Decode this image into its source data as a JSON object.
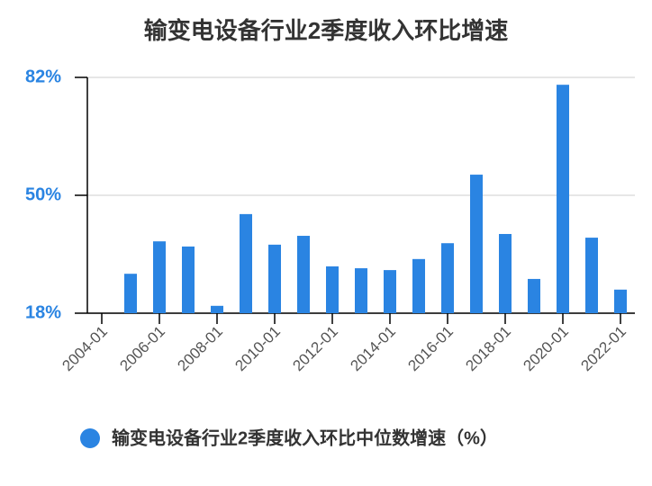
{
  "chart_data": {
    "type": "bar",
    "title": "输变电设备行业2季度收入环比增速",
    "categories": [
      "2004-01",
      null,
      "2006-01",
      null,
      "2008-01",
      null,
      "2010-01",
      null,
      "2012-01",
      null,
      "2014-01",
      null,
      "2016-01",
      null,
      "2018-01",
      null,
      "2020-01",
      null,
      "2022-01"
    ],
    "series": [
      {
        "name": "输变电设备行业2季度收入环比中位数增速（%）",
        "color": "#2a84e2",
        "values": [
          null,
          28.7,
          37.5,
          36.1,
          20.0,
          44.9,
          36.6,
          39.0,
          30.7,
          30.2,
          29.7,
          32.7,
          37.0,
          55.6,
          39.5,
          27.3,
          80.0,
          38.5,
          24.4
        ]
      }
    ],
    "ylim": [
      18,
      82
    ],
    "yticks": [
      {
        "value": 18,
        "label": "18%"
      },
      {
        "value": 50,
        "label": "50%"
      },
      {
        "value": 82,
        "label": "82%"
      }
    ],
    "grid": true,
    "legend": "bottom"
  }
}
